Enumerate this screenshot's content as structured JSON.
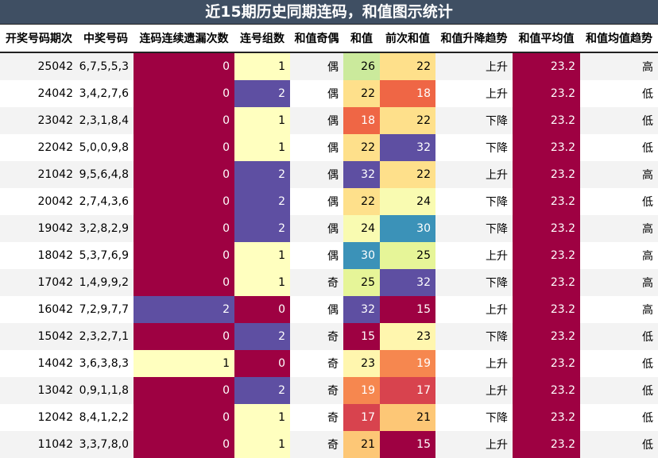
{
  "title": "近15期历史同期连码，和值图示统计",
  "headers": [
    "开奖号码期次",
    "中奖号码",
    "连码连续遗漏次数",
    "连号组数",
    "和值奇偶",
    "和值",
    "前次和值",
    "和值升降趋势",
    "和值平均值",
    "和值均值趋势"
  ],
  "colors": {
    "0": "#9e0142",
    "1": "#ffffbf",
    "2": "#5e4fa2",
    "15": "#9e0142",
    "17": "#d8434e",
    "18": "#ef6645",
    "19": "#f6874f",
    "21": "#fdc776",
    "22": "#fee08b",
    "23": "#fff6ae",
    "24": "#f9fbb1",
    "25": "#e6f598",
    "26": "#cbea9c",
    "30": "#3b92b8",
    "32": "#5e4fa2",
    "avg": "#9e0142"
  },
  "rows": [
    {
      "period": "25042",
      "numbers": "6,7,5,5,3",
      "miss": "0",
      "groups": "1",
      "parity": "偶",
      "sum": "26",
      "prev": "22",
      "trend": "上升",
      "avg": "23.2",
      "avg_trend": "高"
    },
    {
      "period": "24042",
      "numbers": "3,4,2,7,6",
      "miss": "0",
      "groups": "2",
      "parity": "偶",
      "sum": "22",
      "prev": "18",
      "trend": "上升",
      "avg": "23.2",
      "avg_trend": "低"
    },
    {
      "period": "23042",
      "numbers": "2,3,1,8,4",
      "miss": "0",
      "groups": "1",
      "parity": "偶",
      "sum": "18",
      "prev": "22",
      "trend": "下降",
      "avg": "23.2",
      "avg_trend": "低"
    },
    {
      "period": "22042",
      "numbers": "5,0,0,9,8",
      "miss": "0",
      "groups": "1",
      "parity": "偶",
      "sum": "22",
      "prev": "32",
      "trend": "下降",
      "avg": "23.2",
      "avg_trend": "低"
    },
    {
      "period": "21042",
      "numbers": "9,5,6,4,8",
      "miss": "0",
      "groups": "2",
      "parity": "偶",
      "sum": "32",
      "prev": "22",
      "trend": "上升",
      "avg": "23.2",
      "avg_trend": "高"
    },
    {
      "period": "20042",
      "numbers": "2,7,4,3,6",
      "miss": "0",
      "groups": "2",
      "parity": "偶",
      "sum": "22",
      "prev": "24",
      "trend": "下降",
      "avg": "23.2",
      "avg_trend": "低"
    },
    {
      "period": "19042",
      "numbers": "3,2,8,2,9",
      "miss": "0",
      "groups": "2",
      "parity": "偶",
      "sum": "24",
      "prev": "30",
      "trend": "下降",
      "avg": "23.2",
      "avg_trend": "高"
    },
    {
      "period": "18042",
      "numbers": "5,3,7,6,9",
      "miss": "0",
      "groups": "1",
      "parity": "偶",
      "sum": "30",
      "prev": "25",
      "trend": "上升",
      "avg": "23.2",
      "avg_trend": "高"
    },
    {
      "period": "17042",
      "numbers": "1,4,9,9,2",
      "miss": "0",
      "groups": "1",
      "parity": "奇",
      "sum": "25",
      "prev": "32",
      "trend": "下降",
      "avg": "23.2",
      "avg_trend": "高"
    },
    {
      "period": "16042",
      "numbers": "7,2,9,7,7",
      "miss": "2",
      "groups": "0",
      "parity": "偶",
      "sum": "32",
      "prev": "15",
      "trend": "上升",
      "avg": "23.2",
      "avg_trend": "高"
    },
    {
      "period": "15042",
      "numbers": "2,3,2,7,1",
      "miss": "0",
      "groups": "2",
      "parity": "奇",
      "sum": "15",
      "prev": "23",
      "trend": "下降",
      "avg": "23.2",
      "avg_trend": "低"
    },
    {
      "period": "14042",
      "numbers": "3,6,3,8,3",
      "miss": "1",
      "groups": "0",
      "parity": "奇",
      "sum": "23",
      "prev": "19",
      "trend": "上升",
      "avg": "23.2",
      "avg_trend": "低"
    },
    {
      "period": "13042",
      "numbers": "0,9,1,1,8",
      "miss": "0",
      "groups": "2",
      "parity": "奇",
      "sum": "19",
      "prev": "17",
      "trend": "上升",
      "avg": "23.2",
      "avg_trend": "低"
    },
    {
      "period": "12042",
      "numbers": "8,4,1,2,2",
      "miss": "0",
      "groups": "1",
      "parity": "奇",
      "sum": "17",
      "prev": "21",
      "trend": "下降",
      "avg": "23.2",
      "avg_trend": "低"
    },
    {
      "period": "11042",
      "numbers": "3,3,7,8,0",
      "miss": "0",
      "groups": "1",
      "parity": "奇",
      "sum": "21",
      "prev": "15",
      "trend": "上升",
      "avg": "23.2",
      "avg_trend": "低"
    }
  ]
}
